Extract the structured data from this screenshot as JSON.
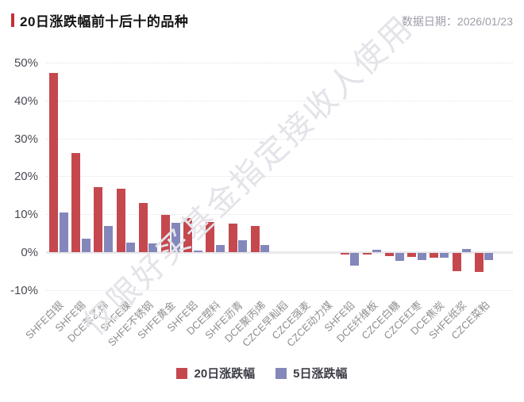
{
  "header": {
    "title": "20日涨跌幅前十后十的品种",
    "date_label": "数据日期：2026/01/23"
  },
  "watermark": "仅限好买基金指定接收人使用",
  "colors": {
    "series_20d": "#c5484f",
    "series_5d": "#8487ba",
    "title_marker": "#c63039",
    "date_text": "#9c9caa",
    "axis_label": "#4a4a55",
    "x_label": "#8f8f8f",
    "grid": "#e4e4e9",
    "watermark": "#e3e3e9"
  },
  "legend": {
    "items": [
      {
        "label": "20日涨跌幅",
        "color": "#c5484f"
      },
      {
        "label": "5日涨跌幅",
        "color": "#8487ba"
      }
    ]
  },
  "chart_data": {
    "type": "bar",
    "title": "20日涨跌幅前十后十的品种",
    "categories": [
      "SHFE白银",
      "SHFE锡",
      "DCE苯乙烯",
      "SHFE镍",
      "SHFE不锈钢",
      "SHFE黄金",
      "SHFE铝",
      "DCE塑料",
      "SHFE沥青",
      "DCE聚丙烯",
      "CZCE早籼稻",
      "CZCE强麦",
      "CZCE动力煤",
      "SHFE铅",
      "DCE纤维板",
      "CZCE白糖",
      "CZCE红枣",
      "DCE焦炭",
      "SHFE纸浆",
      "CZCE菜粕"
    ],
    "series": [
      {
        "name": "20日涨跌幅",
        "color": "#c5484f",
        "values": [
          47.2,
          26.2,
          17.1,
          16.7,
          13.0,
          9.8,
          9.0,
          8.0,
          7.6,
          7.0,
          0,
          0,
          0,
          -0.4,
          -0.4,
          -0.9,
          -1.0,
          -1.3,
          -4.8,
          -5.1
        ]
      },
      {
        "name": "5日涨跌幅",
        "color": "#8487ba",
        "values": [
          10.5,
          3.6,
          6.8,
          2.5,
          2.4,
          7.7,
          0.5,
          1.9,
          3.1,
          1.8,
          0,
          0,
          0,
          -3.3,
          0.7,
          -2.1,
          -1.8,
          -1.2,
          0.9,
          -1.8
        ]
      }
    ],
    "xlabel": "",
    "ylabel": "",
    "ylim": [
      -10,
      50
    ],
    "yticks": [
      50,
      40,
      30,
      20,
      10,
      0,
      -10
    ],
    "ytick_labels": [
      "50%",
      "40%",
      "30%",
      "20%",
      "10%",
      "0%",
      "-10%"
    ],
    "ytick_format": "percent",
    "grid": "horizontal-dotted",
    "legend_position": "bottom-center",
    "x_label_rotation": 45
  }
}
